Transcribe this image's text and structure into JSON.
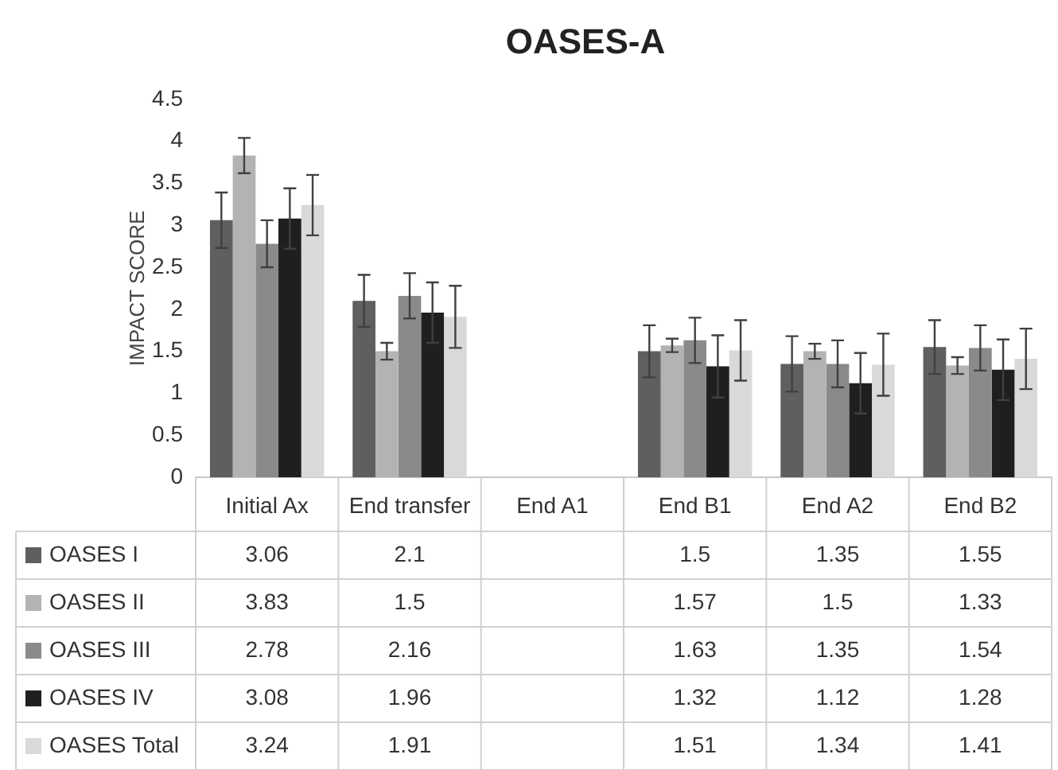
{
  "chart_data": {
    "type": "bar",
    "title": "OASES-A",
    "ylabel": "IMPACT SCORE",
    "categories": [
      "Initial Ax",
      "End transfer",
      "End A1",
      "End B1",
      "End A2",
      "End B2"
    ],
    "series": [
      {
        "name": "OASES I",
        "color": "#5f5f5f",
        "values": [
          3.06,
          2.1,
          null,
          1.5,
          1.35,
          1.55
        ],
        "errors": [
          0.33,
          0.31,
          null,
          0.31,
          0.33,
          0.32
        ]
      },
      {
        "name": "OASES II",
        "color": "#b3b3b3",
        "values": [
          3.83,
          1.5,
          null,
          1.57,
          1.5,
          1.33
        ],
        "errors": [
          0.21,
          0.1,
          null,
          0.08,
          0.09,
          0.1
        ]
      },
      {
        "name": "OASES III",
        "color": "#8a8a8a",
        "values": [
          2.78,
          2.16,
          null,
          1.63,
          1.35,
          1.54
        ],
        "errors": [
          0.28,
          0.27,
          null,
          0.27,
          0.28,
          0.27
        ]
      },
      {
        "name": "OASES IV",
        "color": "#1f1f1f",
        "values": [
          3.08,
          1.96,
          null,
          1.32,
          1.12,
          1.28
        ],
        "errors": [
          0.36,
          0.36,
          null,
          0.37,
          0.36,
          0.36
        ]
      },
      {
        "name": "OASES Total",
        "color": "#d9d9d9",
        "values": [
          3.24,
          1.91,
          null,
          1.51,
          1.34,
          1.41
        ],
        "errors": [
          0.36,
          0.37,
          null,
          0.36,
          0.37,
          0.36
        ]
      }
    ],
    "ylim": [
      0,
      4.5
    ],
    "yticks": [
      0,
      0.5,
      1,
      1.5,
      2,
      2.5,
      3,
      3.5,
      4,
      4.5
    ],
    "grid": false,
    "legend": "bottom",
    "data_labels": true
  }
}
